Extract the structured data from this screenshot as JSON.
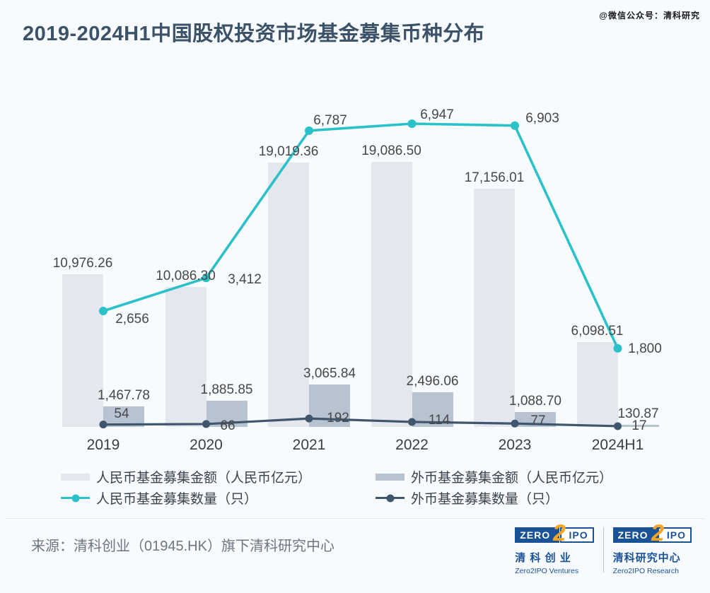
{
  "watermark": "@微信公众号：清科研究",
  "title": "2019-2024H1中国股权投资市场基金募集币种分布",
  "chart_data": {
    "type": "combo-bar-line",
    "categories": [
      "2019",
      "2020",
      "2021",
      "2022",
      "2023",
      "2024H1"
    ],
    "series": [
      {
        "key": "rmb-amount",
        "name": "人民币基金募集金额（人民币亿元）",
        "kind": "bar",
        "color": "#e4e7ed",
        "values": [
          10976.26,
          10086.3,
          19019.36,
          19086.5,
          17156.01,
          6098.51
        ],
        "labels": [
          "10,976.26",
          "10,086.30",
          "19,019.36",
          "19,086.50",
          "17,156.01",
          "6,098.51"
        ]
      },
      {
        "key": "fx-amount",
        "name": "外币基金募集金额（人民币亿元）",
        "kind": "bar",
        "color": "#b8c3d2",
        "values": [
          1467.78,
          1885.85,
          3065.84,
          2496.06,
          1088.7,
          130.87
        ],
        "labels": [
          "1,467.78",
          "1,885.85",
          "3,065.84",
          "2,496.06",
          "1,088.70",
          "130.87"
        ]
      },
      {
        "key": "rmb-count",
        "name": "人民币基金募集数量（只）",
        "kind": "line",
        "color": "#2ac1c9",
        "values": [
          2656,
          3412,
          6787,
          6947,
          6903,
          1800
        ],
        "labels": [
          "2,656",
          "3,412",
          "6,787",
          "6,947",
          "6,903",
          "1,800"
        ]
      },
      {
        "key": "fx-count",
        "name": "外币基金募集数量（只）",
        "kind": "line",
        "color": "#3f566d",
        "values": [
          54,
          66,
          192,
          114,
          77,
          17
        ],
        "labels": [
          "54",
          "66",
          "192",
          "114",
          "77",
          "17"
        ]
      }
    ],
    "xlabel": "",
    "ylabel": "",
    "grid": false,
    "axes_visible": false,
    "legend_position": "bottom",
    "amount_axis_range": [
      0,
      19086.5
    ],
    "count_axis_range": [
      0,
      6947
    ]
  },
  "footer": {
    "source": "来源：清科创业（01945.HK）旗下清科研究中心",
    "logos": [
      {
        "zero": "ZERO",
        "two": "2",
        "ipo": "IPO",
        "cn": "清 科 创 业",
        "en": "Zero2IPO Ventures"
      },
      {
        "zero": "ZERO",
        "two": "2",
        "ipo": "IPO",
        "cn": "清科研究中心",
        "en": "Zero2IPO Research"
      }
    ]
  }
}
